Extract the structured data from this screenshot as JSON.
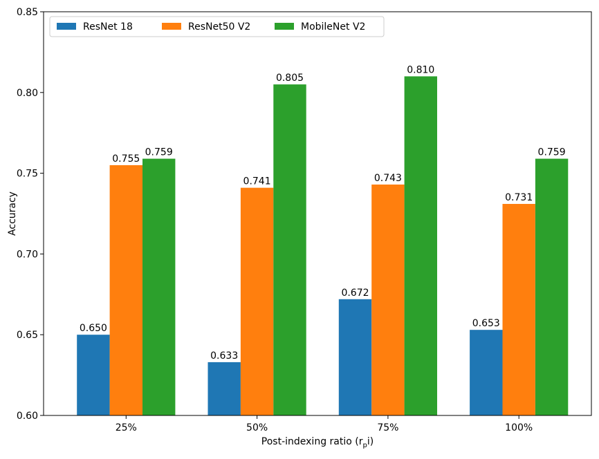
{
  "chart_data": {
    "type": "bar",
    "categories": [
      "25%",
      "50%",
      "75%",
      "100%"
    ],
    "series": [
      {
        "name": "ResNet 18",
        "color": "#1f77b4",
        "values": [
          0.65,
          0.633,
          0.672,
          0.653
        ],
        "labels": [
          "0.650",
          "0.633",
          "0.672",
          "0.653"
        ]
      },
      {
        "name": "ResNet50 V2",
        "color": "#ff7f0e",
        "values": [
          0.755,
          0.741,
          0.743,
          0.731
        ],
        "labels": [
          "0.755",
          "0.741",
          "0.743",
          "0.731"
        ]
      },
      {
        "name": "MobileNet V2",
        "color": "#2ca02c",
        "values": [
          0.759,
          0.805,
          0.81,
          0.759
        ],
        "labels": [
          "0.759",
          "0.805",
          "0.810",
          "0.759"
        ]
      }
    ],
    "xlabel": "Post-indexing ratio (r",
    "xlabel_sub": "p",
    "xlabel_end": "i)",
    "ylabel": "Accuracy",
    "ylim": [
      0.6,
      0.85
    ],
    "yticks": [
      "0.60",
      "0.65",
      "0.70",
      "0.75",
      "0.80",
      "0.85"
    ],
    "grid": false,
    "legend_position": "top-left"
  }
}
